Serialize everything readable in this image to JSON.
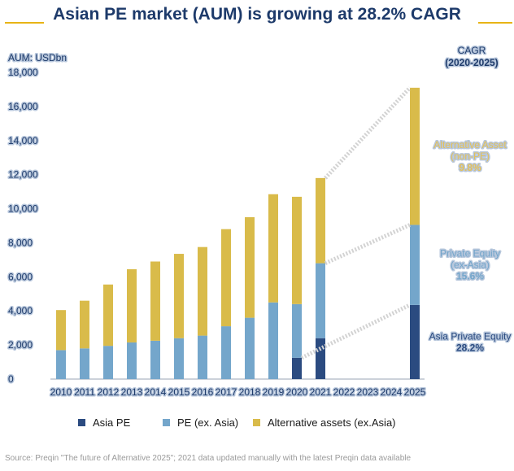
{
  "header": {
    "title": "Asian PE market (AUM) is growing at 28.2% CAGR"
  },
  "footer": {
    "source": "Source: Preqin \"The future of Alternative 2025\"; 2021 data updated manually with the latest Preqin data available"
  },
  "chart_data": {
    "type": "bar",
    "stacked": true,
    "unit_label": "AUM: USDbn",
    "categories": [
      "2010",
      "2011",
      "2012",
      "2013",
      "2014",
      "2015",
      "2016",
      "2017",
      "2018",
      "2019",
      "2020",
      "2021",
      "2022",
      "2023",
      "2024",
      "2025"
    ],
    "series": [
      {
        "name": "Asia PE",
        "color": "#2b4b80",
        "values": [
          0,
          0,
          0,
          0,
          0,
          0,
          0,
          0,
          0,
          0,
          1250,
          2400,
          0,
          0,
          0,
          4350
        ]
      },
      {
        "name": "PE (ex. Asia)",
        "color": "#74a6cb",
        "values": [
          1700,
          1800,
          1950,
          2150,
          2250,
          2400,
          2550,
          3100,
          3600,
          4500,
          3150,
          4400,
          0,
          0,
          0,
          4700
        ]
      },
      {
        "name": "Alternative assets (ex.Asia)",
        "color": "#d9bb4a",
        "values": [
          2350,
          2800,
          3600,
          4300,
          4650,
          4950,
          5200,
          5700,
          5900,
          6350,
          6300,
          5000,
          0,
          0,
          0,
          8050
        ]
      }
    ],
    "ylim": [
      0,
      18000
    ],
    "yticks": [
      0,
      2000,
      4000,
      6000,
      8000,
      10000,
      12000,
      14000,
      16000,
      18000
    ],
    "ytick_labels": [
      "0",
      "2,000",
      "4,000",
      "6,000",
      "8,000",
      "10,000",
      "12,000",
      "14,000",
      "16,000",
      "18,000"
    ],
    "cagr_header": [
      "CAGR",
      "(2020-2025)"
    ],
    "cagr_annotations": [
      {
        "lines": [
          "Alternative Asset",
          "(non-PE)",
          "9.8%"
        ],
        "color": "#e3c15a"
      },
      {
        "lines": [
          "Private Equity",
          "(ex-Asia)",
          "15.6%"
        ],
        "color": "#74a6cb"
      },
      {
        "lines": [
          "Asia Private Equity",
          "28.2%"
        ],
        "color": "#2b4b80"
      }
    ],
    "legend_position": "bottom",
    "grid": false
  }
}
